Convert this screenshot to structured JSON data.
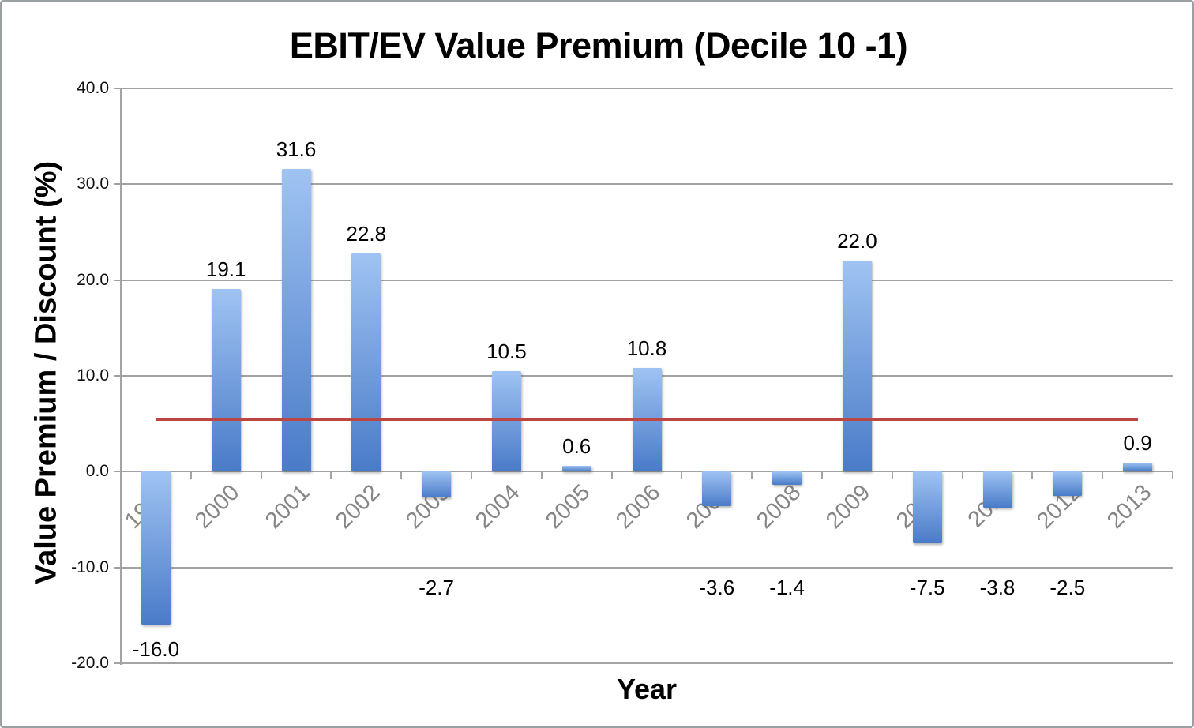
{
  "chart_data": {
    "type": "bar",
    "title": "EBIT/EV Value Premium (Decile 10 -1)",
    "xlabel": "Year",
    "ylabel": "Value Premium / Discount (%)",
    "categories": [
      "1999",
      "2000",
      "2001",
      "2002",
      "2003",
      "2004",
      "2005",
      "2006",
      "2007",
      "2008",
      "2009",
      "2010",
      "2011",
      "2012",
      "2013"
    ],
    "values": [
      -16.0,
      19.1,
      31.6,
      22.8,
      -2.7,
      10.5,
      0.6,
      10.8,
      -3.6,
      -1.4,
      22.0,
      -7.5,
      -3.8,
      -2.5,
      0.9
    ],
    "data_labels": [
      "-16.0",
      "19.1",
      "31.6",
      "22.8",
      "-2.7",
      "10.5",
      "0.6",
      "10.8",
      "-3.6",
      "-1.4",
      "22.0",
      "-7.5",
      "-3.8",
      "-2.5",
      "0.9"
    ],
    "ylim": [
      -20,
      40
    ],
    "ytick_values": [
      40,
      30,
      20,
      10,
      0,
      -10,
      -20
    ],
    "ytick_labels": [
      "40.0",
      "30.0",
      "20.0",
      "10.0",
      "0.0",
      "-10.0",
      "-20.0"
    ],
    "grid": true,
    "legend": false,
    "mean_line": {
      "value": 5.4,
      "color": "#BE4642"
    },
    "colors": {
      "bar_gradient_top": "#9FC3F2",
      "bar_gradient_bottom": "#4A7BC8",
      "gridline": "#A3A3A3",
      "axis": "#A3A3A3",
      "x_label": "#868686",
      "y_label": "#111111",
      "data_label": "#000000",
      "title": "#000000"
    }
  }
}
